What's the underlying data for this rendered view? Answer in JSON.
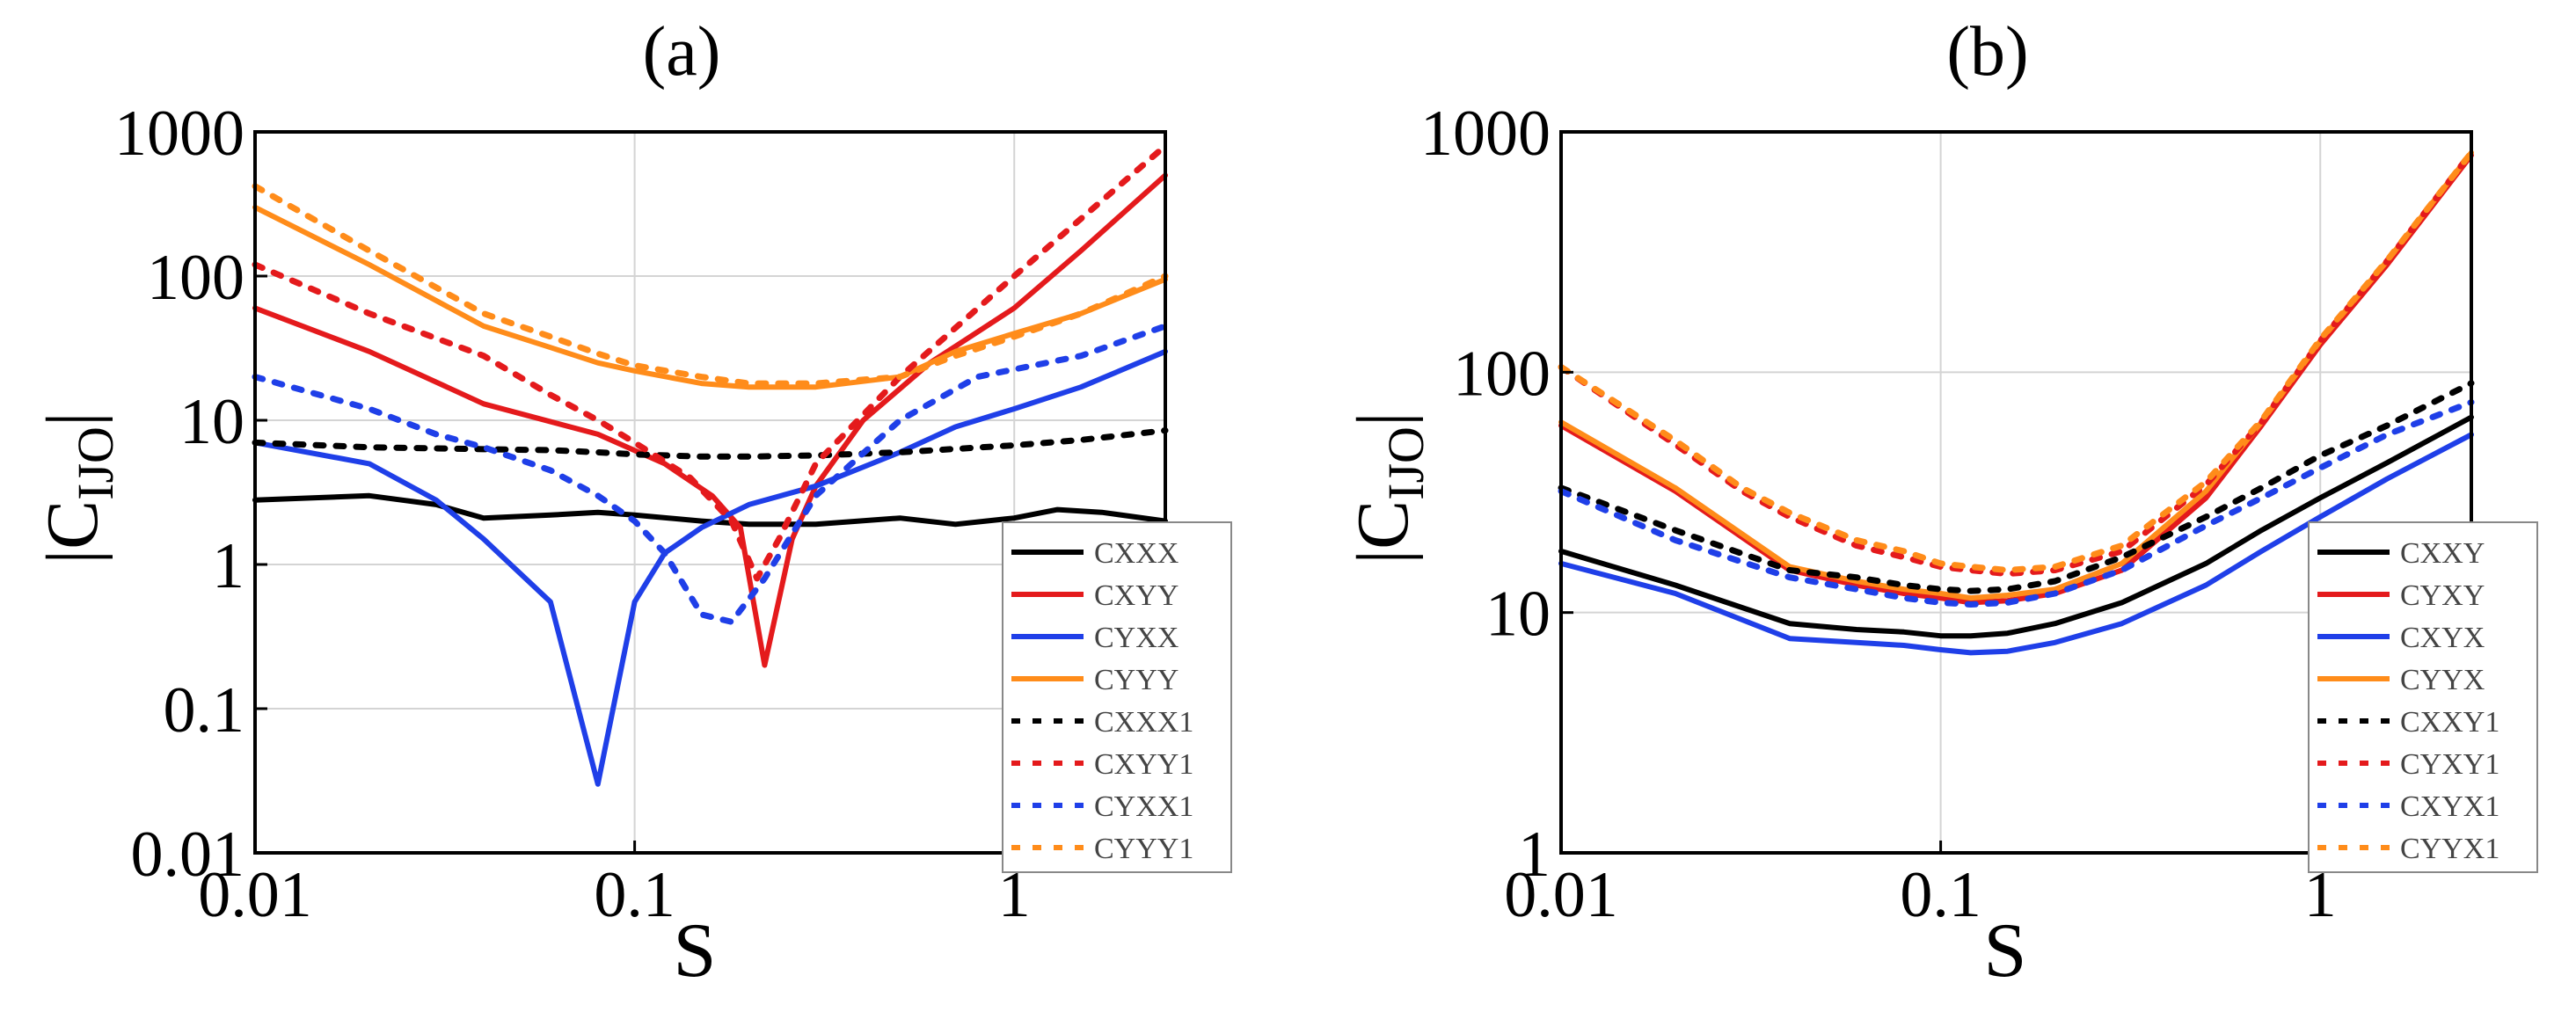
{
  "chart_data": [
    {
      "type": "line",
      "panel_label": "(a)",
      "xscale": "log",
      "yscale": "log",
      "xlim": [
        0.01,
        2.5
      ],
      "ylim": [
        0.01,
        1000
      ],
      "xlabel": "S",
      "ylabel_main": "|C",
      "ylabel_sub": "IJO",
      "ylabel_end": "|",
      "grid": true,
      "legend_position": "bottom-right",
      "xticks": [
        {
          "value": 0.01,
          "label": "0.01"
        },
        {
          "value": 0.1,
          "label": "0.1"
        },
        {
          "value": 1,
          "label": "1"
        }
      ],
      "yticks": [
        {
          "value": 0.01,
          "label": "0.01"
        },
        {
          "value": 0.1,
          "label": "0.1"
        },
        {
          "value": 1,
          "label": "1"
        },
        {
          "value": 10,
          "label": "10"
        },
        {
          "value": 100,
          "label": "100"
        },
        {
          "value": 1000,
          "label": "1000"
        }
      ],
      "series": [
        {
          "name": "CXXX",
          "color": "#000000",
          "style": "solid",
          "x": [
            0.01,
            0.02,
            0.03,
            0.04,
            0.06,
            0.08,
            0.1,
            0.15,
            0.2,
            0.3,
            0.5,
            0.7,
            1.0,
            1.3,
            1.7,
            2.5
          ],
          "y": [
            2.8,
            3.0,
            2.6,
            2.1,
            2.2,
            2.3,
            2.2,
            2.0,
            1.9,
            1.9,
            2.1,
            1.9,
            2.1,
            2.4,
            2.3,
            2.0
          ]
        },
        {
          "name": "CXYY",
          "color": "#e41a1c",
          "style": "solid",
          "x": [
            0.01,
            0.02,
            0.04,
            0.08,
            0.12,
            0.16,
            0.19,
            0.22,
            0.26,
            0.3,
            0.4,
            0.6,
            1.0,
            1.5,
            2.5
          ],
          "y": [
            60,
            30,
            13,
            8,
            5,
            3,
            1.8,
            0.2,
            1.5,
            3.5,
            10,
            25,
            60,
            150,
            500
          ]
        },
        {
          "name": "CYXX",
          "color": "#1f3fe8",
          "style": "solid",
          "x": [
            0.01,
            0.02,
            0.03,
            0.04,
            0.06,
            0.08,
            0.1,
            0.12,
            0.15,
            0.2,
            0.3,
            0.5,
            0.7,
            1.0,
            1.5,
            2.5
          ],
          "y": [
            7,
            5,
            2.8,
            1.5,
            0.55,
            0.03,
            0.55,
            1.2,
            1.8,
            2.6,
            3.5,
            6,
            9,
            12,
            17,
            30
          ]
        },
        {
          "name": "CYYY",
          "color": "#ff8c1a",
          "style": "solid",
          "x": [
            0.01,
            0.02,
            0.04,
            0.06,
            0.08,
            0.1,
            0.15,
            0.2,
            0.3,
            0.5,
            0.7,
            1.0,
            1.5,
            2.5
          ],
          "y": [
            300,
            120,
            45,
            32,
            25,
            22,
            18,
            17,
            17,
            20,
            30,
            40,
            55,
            95
          ]
        },
        {
          "name": "CXXX1",
          "color": "#000000",
          "style": "dashed",
          "x": [
            0.01,
            0.02,
            0.04,
            0.06,
            0.08,
            0.1,
            0.15,
            0.2,
            0.3,
            0.5,
            1.0,
            1.5,
            2.5
          ],
          "y": [
            7,
            6.5,
            6.3,
            6.2,
            6.0,
            5.8,
            5.6,
            5.6,
            5.7,
            6.0,
            6.7,
            7.3,
            8.5
          ]
        },
        {
          "name": "CXYY1",
          "color": "#e41a1c",
          "style": "dashed",
          "x": [
            0.01,
            0.02,
            0.04,
            0.06,
            0.08,
            0.1,
            0.14,
            0.18,
            0.21,
            0.24,
            0.3,
            0.5,
            1.0,
            1.5,
            2.5
          ],
          "y": [
            120,
            55,
            28,
            15,
            10,
            7,
            4,
            2,
            0.8,
            1.5,
            5,
            20,
            100,
            250,
            800
          ]
        },
        {
          "name": "CYXX1",
          "color": "#1f3fe8",
          "style": "dashed",
          "x": [
            0.01,
            0.02,
            0.03,
            0.04,
            0.06,
            0.08,
            0.1,
            0.12,
            0.15,
            0.18,
            0.22,
            0.3,
            0.5,
            0.8,
            1.5,
            2.5
          ],
          "y": [
            20,
            12,
            8,
            6.5,
            4.5,
            3,
            2,
            1.2,
            0.45,
            0.4,
            0.8,
            3,
            10,
            20,
            28,
            45
          ]
        },
        {
          "name": "CYYY1",
          "color": "#ff8c1a",
          "style": "dashed",
          "x": [
            0.01,
            0.02,
            0.04,
            0.06,
            0.08,
            0.1,
            0.15,
            0.2,
            0.3,
            0.5,
            0.7,
            1.0,
            1.5,
            2.5
          ],
          "y": [
            420,
            150,
            55,
            38,
            29,
            24,
            20,
            18,
            18,
            20,
            28,
            38,
            55,
            100
          ]
        }
      ]
    },
    {
      "type": "line",
      "panel_label": "(b)",
      "xscale": "log",
      "yscale": "log",
      "xlim": [
        0.01,
        2.5
      ],
      "ylim": [
        1,
        1000
      ],
      "xlabel": "S",
      "ylabel_main": "|C",
      "ylabel_sub": "IJO",
      "ylabel_end": "|",
      "grid": true,
      "legend_position": "bottom-right",
      "xticks": [
        {
          "value": 0.01,
          "label": "0.01"
        },
        {
          "value": 0.1,
          "label": "0.1"
        },
        {
          "value": 1,
          "label": "1"
        }
      ],
      "yticks": [
        {
          "value": 1,
          "label": "1"
        },
        {
          "value": 10,
          "label": "10"
        },
        {
          "value": 100,
          "label": "100"
        },
        {
          "value": 1000,
          "label": "1000"
        }
      ],
      "series": [
        {
          "name": "CXXY",
          "color": "#000000",
          "style": "solid",
          "x": [
            0.01,
            0.02,
            0.04,
            0.06,
            0.08,
            0.1,
            0.12,
            0.15,
            0.2,
            0.3,
            0.5,
            0.7,
            1.0,
            1.5,
            2.5
          ],
          "y": [
            18,
            13,
            9,
            8.5,
            8.3,
            8,
            8,
            8.2,
            9,
            11,
            16,
            22,
            30,
            42,
            65
          ]
        },
        {
          "name": "CYXY",
          "color": "#e41a1c",
          "style": "solid",
          "x": [
            0.01,
            0.02,
            0.04,
            0.06,
            0.08,
            0.1,
            0.12,
            0.15,
            0.2,
            0.3,
            0.5,
            0.7,
            1.0,
            1.5,
            2.5
          ],
          "y": [
            60,
            32,
            15,
            13,
            12,
            11.5,
            11,
            11.2,
            12,
            15,
            30,
            60,
            130,
            280,
            800
          ]
        },
        {
          "name": "CXYX",
          "color": "#1f3fe8",
          "style": "solid",
          "x": [
            0.01,
            0.02,
            0.04,
            0.06,
            0.08,
            0.1,
            0.12,
            0.15,
            0.2,
            0.3,
            0.5,
            0.7,
            1.0,
            1.5,
            2.5
          ],
          "y": [
            16,
            12,
            7.8,
            7.5,
            7.3,
            7,
            6.8,
            6.9,
            7.5,
            9,
            13,
            18,
            25,
            36,
            55
          ]
        },
        {
          "name": "CYYX",
          "color": "#ff8c1a",
          "style": "solid",
          "x": [
            0.01,
            0.02,
            0.04,
            0.06,
            0.08,
            0.1,
            0.12,
            0.15,
            0.2,
            0.3,
            0.5,
            0.7,
            1.0,
            1.5,
            2.5
          ],
          "y": [
            62,
            33,
            15.5,
            13.5,
            12.5,
            12,
            11.5,
            11.8,
            12.5,
            16,
            32,
            62,
            135,
            290,
            820
          ]
        },
        {
          "name": "CXXY1",
          "color": "#000000",
          "style": "dashed",
          "x": [
            0.01,
            0.02,
            0.04,
            0.06,
            0.08,
            0.1,
            0.12,
            0.15,
            0.2,
            0.3,
            0.5,
            0.7,
            1.0,
            1.5,
            2.5
          ],
          "y": [
            33,
            22,
            15,
            14,
            13,
            12.5,
            12.3,
            12.5,
            13.5,
            17,
            25,
            33,
            45,
            60,
            90
          ]
        },
        {
          "name": "CYXY1",
          "color": "#e41a1c",
          "style": "dashed",
          "x": [
            0.01,
            0.02,
            0.03,
            0.04,
            0.06,
            0.08,
            0.1,
            0.12,
            0.15,
            0.2,
            0.3,
            0.5,
            0.7,
            1.0,
            1.5,
            2.5
          ],
          "y": [
            105,
            50,
            32,
            25,
            19,
            17,
            15.5,
            15,
            14.5,
            15,
            18,
            34,
            62,
            135,
            290,
            820
          ]
        },
        {
          "name": "CXYX1",
          "color": "#1f3fe8",
          "style": "dashed",
          "x": [
            0.01,
            0.02,
            0.04,
            0.06,
            0.08,
            0.1,
            0.12,
            0.15,
            0.2,
            0.3,
            0.5,
            0.7,
            1.0,
            1.5,
            2.5
          ],
          "y": [
            32,
            20,
            14,
            12.5,
            11.5,
            11,
            10.8,
            11,
            12,
            15,
            23,
            30,
            40,
            55,
            75
          ]
        },
        {
          "name": "CYYX1",
          "color": "#ff8c1a",
          "style": "dashed",
          "x": [
            0.01,
            0.02,
            0.03,
            0.04,
            0.06,
            0.08,
            0.1,
            0.12,
            0.15,
            0.2,
            0.3,
            0.5,
            0.7,
            1.0,
            1.5,
            2.5
          ],
          "y": [
            105,
            52,
            33,
            26,
            20,
            18,
            16,
            15.5,
            15,
            15.5,
            19,
            35,
            63,
            137,
            292,
            820
          ]
        }
      ]
    }
  ]
}
